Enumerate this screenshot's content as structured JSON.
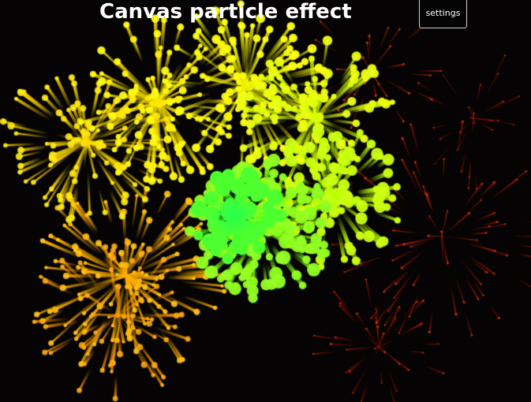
{
  "page": {
    "title": "Canvas particle effect"
  },
  "toolbar": {
    "settings_label": "settings"
  },
  "theme": {
    "background": "#050303",
    "title_color": "#ffffff",
    "button_border": "#cfcfcf"
  },
  "effect": {
    "description_colors": [
      "#ffe600",
      "#ffc400",
      "#ff9a00",
      "#b8ff00",
      "#39ff1a",
      "#ff2a00"
    ]
  }
}
